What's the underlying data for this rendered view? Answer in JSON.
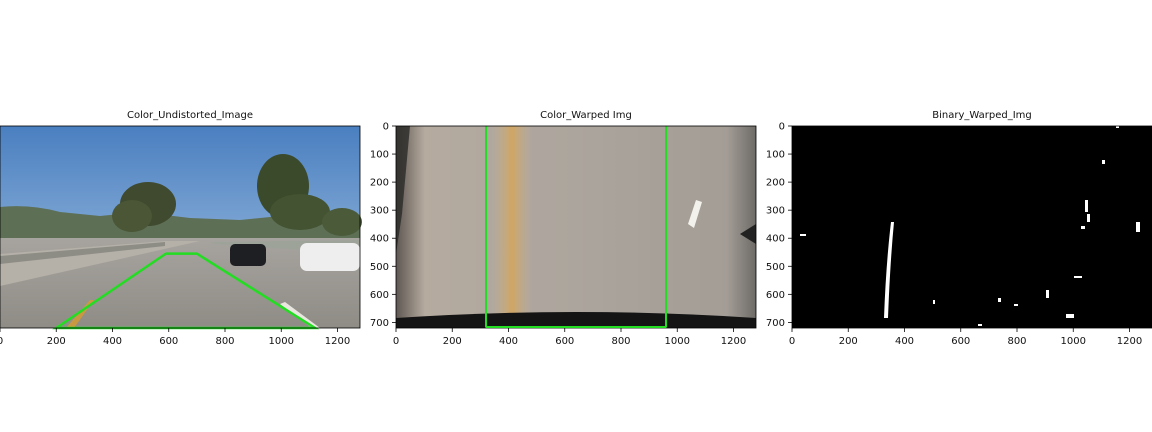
{
  "chart_data": [
    {
      "type": "image",
      "title": "Color_Undistorted_Image",
      "content": "undistorted road photo with green lane-region trapezoid overlay",
      "xlim": [
        0,
        1280
      ],
      "ylim": [
        720,
        0
      ],
      "x_ticks": [
        0,
        200,
        400,
        600,
        800,
        1000,
        1200
      ],
      "y_ticks": [],
      "overlay_color": "#22dd22",
      "overlay_polygon": [
        [
          200,
          720
        ],
        [
          590,
          455
        ],
        [
          700,
          455
        ],
        [
          1120,
          720
        ]
      ]
    },
    {
      "type": "image",
      "title": "Color_Warped Img",
      "content": "perspective-warped bird's-eye road view with two vertical green lane lines",
      "xlim": [
        0,
        1280
      ],
      "ylim": [
        720,
        0
      ],
      "x_ticks": [
        0,
        200,
        400,
        600,
        800,
        1000,
        1200
      ],
      "y_ticks": [
        0,
        100,
        200,
        300,
        400,
        500,
        600,
        700
      ],
      "overlay_color": "#22dd22",
      "overlay_vertical_lines": [
        320,
        960
      ]
    },
    {
      "type": "image",
      "title": "Binary_Warped_Img",
      "content": "binary thresholded warped image: black background with white lane pixels",
      "xlim": [
        0,
        1280
      ],
      "ylim": [
        720,
        0
      ],
      "x_ticks": [
        0,
        200,
        400,
        600,
        800,
        1000,
        1200
      ],
      "y_ticks": [
        0,
        100,
        200,
        300,
        400,
        500,
        600,
        700
      ]
    }
  ]
}
